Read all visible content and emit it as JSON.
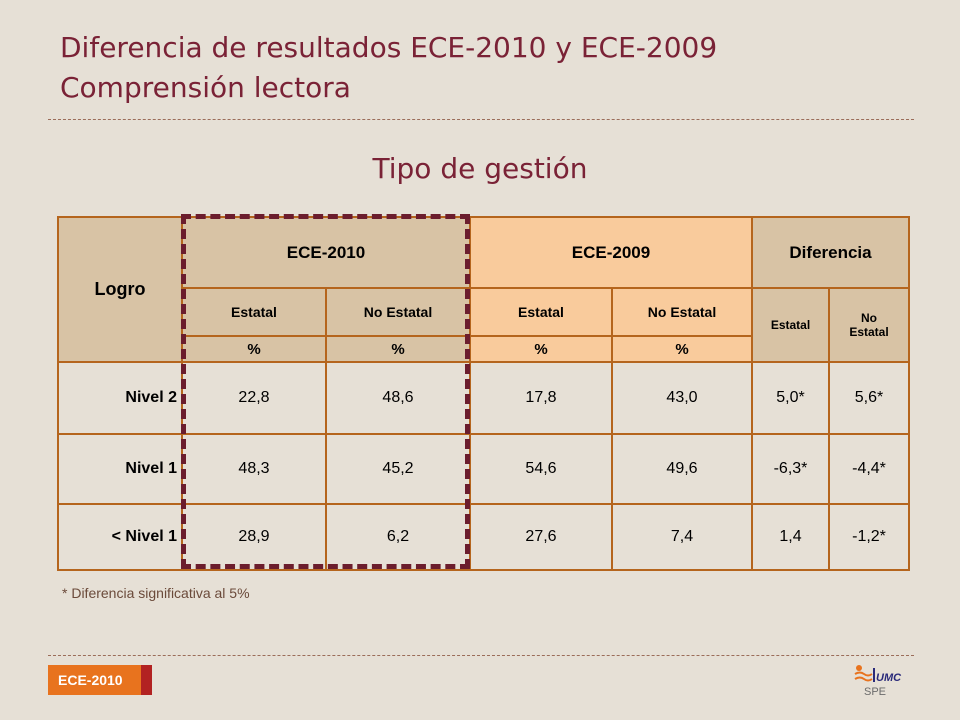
{
  "header": {
    "title_line1": "Diferencia de resultados ECE-2010 y ECE-2009",
    "title_line2": "Comprensión lectora"
  },
  "subtitle": "Tipo de gestión",
  "table": {
    "col_logro": "Logro",
    "groups": {
      "ece2010": "ECE-2010",
      "ece2009": "ECE-2009",
      "diferencia": "Diferencia"
    },
    "sub": {
      "estatal": "Estatal",
      "no_estatal": "No Estatal",
      "no_estatal_line1": "No",
      "no_estatal_line2": "Estatal"
    },
    "unit": "%",
    "rows": [
      {
        "label": "Nivel 2",
        "v": [
          "22,8",
          "48,6",
          "17,8",
          "43,0",
          "5,0*",
          "5,6*"
        ]
      },
      {
        "label": "Nivel 1",
        "v": [
          "48,3",
          "45,2",
          "54,6",
          "49,6",
          "-6,3*",
          "-4,4*"
        ]
      },
      {
        "label": "< Nivel 1",
        "v": [
          "28,9",
          "6,2",
          "27,6",
          "7,4",
          "1,4",
          "-1,2*"
        ]
      }
    ]
  },
  "footnote": "* Diferencia significativa al 5%",
  "footer": {
    "badge": "ECE-2010",
    "logo_text": "UMC",
    "logo_sub": "SPE"
  },
  "colors": {
    "title": "#7a2236",
    "table_border": "#b5651d",
    "header_tan": "#d8c3a5",
    "header_peach": "#f9cb9c",
    "highlight": "#6b1d2d",
    "badge": "#e8731e"
  }
}
